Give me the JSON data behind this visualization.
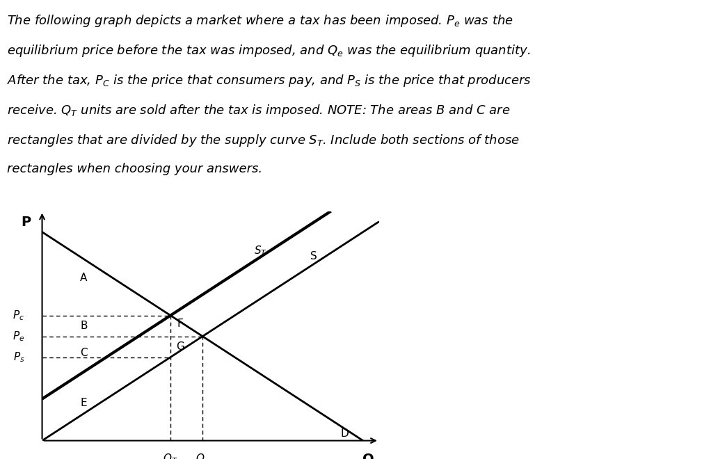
{
  "background_color": "#ffffff",
  "line_color": "#000000",
  "label_fontsize": 10,
  "area_fontsize": 10,
  "axis_label_fontsize": 12,
  "a": 10.0,
  "b": 1.0,
  "c": 1.0,
  "tax_val": 2.0,
  "Q_axis_max": 10.5,
  "P_axis_max": 11.0,
  "lw_main": 2.0,
  "lw_ST": 3.0,
  "lw_dash": 1.0,
  "text_lines": [
    "The following graph depicts a market where a tax has been imposed. $P_e$ was the",
    "equilibrium price before the tax was imposed, and $Q_e$ was the equilibrium quantity.",
    "After the tax, $P_C$ is the price that consumers pay, and $P_S$ is the price that producers",
    "receive. $Q_T$ units are sold after the tax is imposed. NOTE: The areas B and C are",
    "rectangles that are divided by the supply curve $S_T$. Include both sections of those",
    "rectangles when choosing your answers."
  ],
  "text_fontsize": 13.0,
  "text_linespacing": 1.6
}
